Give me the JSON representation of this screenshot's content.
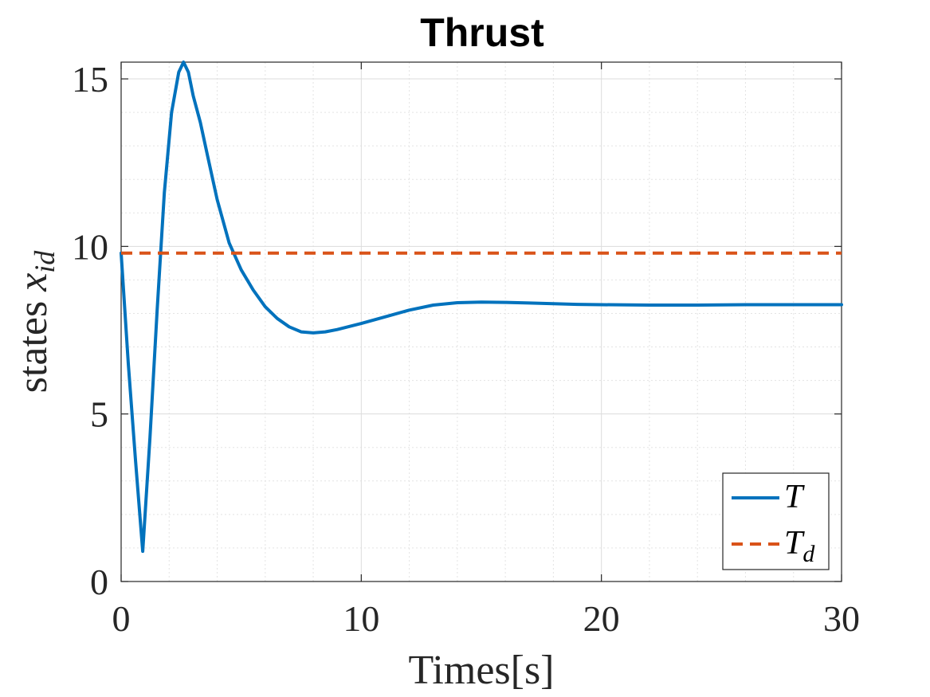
{
  "chart_data": {
    "type": "line",
    "title": "Thrust",
    "xlabel": "Times[s]",
    "ylabel": "states",
    "ylabel_math": "x",
    "ylabel_math_sub": "id",
    "xlim": [
      0,
      30
    ],
    "ylim": [
      0,
      15.5
    ],
    "x_ticks": [
      0,
      10,
      20,
      30
    ],
    "y_ticks": [
      0,
      5,
      10,
      15
    ],
    "x_minor_step": 2,
    "y_minor_step": 1,
    "grid": true,
    "legend_position": "bottom-right",
    "series": [
      {
        "name": "T",
        "name_sub": "",
        "color": "#0072BD",
        "style": "solid",
        "x": [
          0,
          0.3,
          0.6,
          0.9,
          1.2,
          1.5,
          1.8,
          2.1,
          2.4,
          2.6,
          2.8,
          3.0,
          3.3,
          3.6,
          4.0,
          4.5,
          5.0,
          5.5,
          6.0,
          6.5,
          7.0,
          7.5,
          8.0,
          8.5,
          9.0,
          10.0,
          11.0,
          12.0,
          13.0,
          14.0,
          15.0,
          16.0,
          17.0,
          18.0,
          19.0,
          20.0,
          22.0,
          24.0,
          26.0,
          28.0,
          30.0
        ],
        "y": [
          9.8,
          6.5,
          3.6,
          0.9,
          4.3,
          8.1,
          11.6,
          14.0,
          15.2,
          15.5,
          15.2,
          14.5,
          13.7,
          12.7,
          11.4,
          10.1,
          9.3,
          8.7,
          8.2,
          7.85,
          7.6,
          7.45,
          7.42,
          7.45,
          7.52,
          7.7,
          7.9,
          8.1,
          8.25,
          8.32,
          8.34,
          8.33,
          8.31,
          8.29,
          8.27,
          8.26,
          8.25,
          8.25,
          8.26,
          8.26,
          8.26
        ]
      },
      {
        "name": "T",
        "name_sub": "d",
        "color": "#D95319",
        "style": "dashed",
        "x": [
          0,
          30
        ],
        "y": [
          9.8,
          9.8
        ]
      }
    ]
  }
}
